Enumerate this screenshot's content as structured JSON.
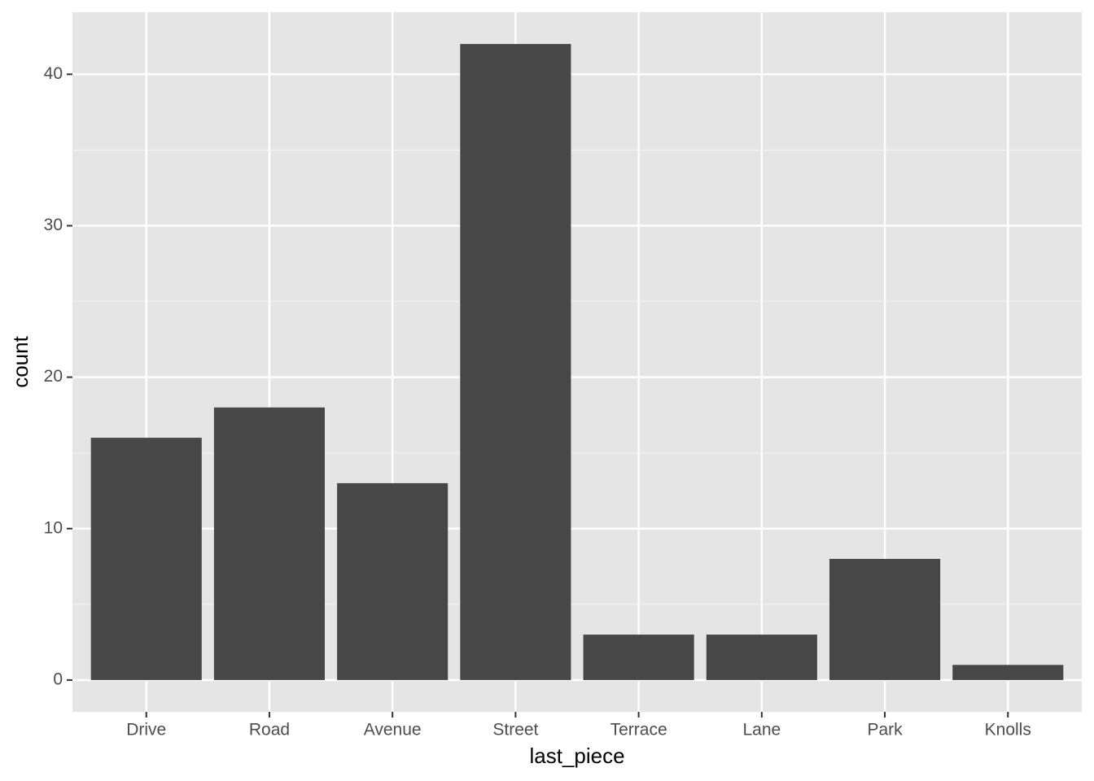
{
  "chart_data": {
    "type": "bar",
    "x_label": "last_piece",
    "y_label": "count",
    "categories": [
      "Drive",
      "Road",
      "Avenue",
      "Street",
      "Terrace",
      "Lane",
      "Park",
      "Knolls"
    ],
    "values": [
      16,
      18,
      13,
      42,
      3,
      3,
      8,
      1
    ],
    "color": "#474747",
    "ylim": [
      -2.1,
      44.1
    ],
    "yticks": [
      0,
      10,
      20,
      30,
      40
    ],
    "grid": true
  }
}
